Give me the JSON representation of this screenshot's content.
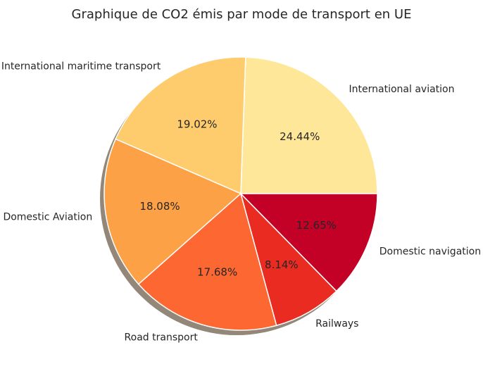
{
  "chart_data": {
    "type": "pie",
    "title": "Graphique de CO2 émis par mode de transport en UE",
    "shadow": true,
    "start_angle_deg": 0,
    "direction": "counterclockwise",
    "slices": [
      {
        "label": "International aviation",
        "value": 24.44,
        "pct_text": "24.44%",
        "color": "#ffe799"
      },
      {
        "label": "International maritime transport",
        "value": 19.02,
        "pct_text": "19.02%",
        "color": "#fecc6c"
      },
      {
        "label": "Domestic Aviation",
        "value": 18.08,
        "pct_text": "18.08%",
        "color": "#fda146"
      },
      {
        "label": "Road transport",
        "value": 17.68,
        "pct_text": "17.68%",
        "color": "#fc6732"
      },
      {
        "label": "Railways",
        "value": 8.14,
        "pct_text": "8.14%",
        "color": "#ea2b21"
      },
      {
        "label": "Domestic navigation",
        "value": 12.65,
        "pct_text": "12.65%",
        "color": "#c30026"
      }
    ]
  }
}
